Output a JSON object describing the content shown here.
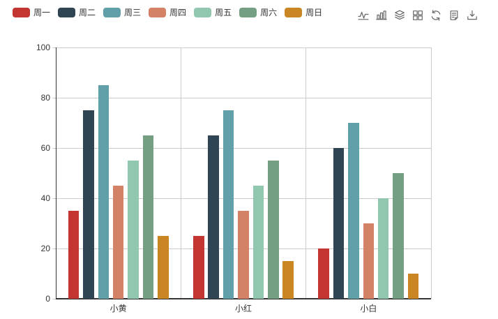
{
  "toolbox": {
    "icon_color": "#666666",
    "icons": [
      {
        "name": "line-chart-icon"
      },
      {
        "name": "bar-chart-icon"
      },
      {
        "name": "stack-icon"
      },
      {
        "name": "tiled-icon"
      },
      {
        "name": "restore-icon"
      },
      {
        "name": "data-view-icon"
      },
      {
        "name": "download-icon"
      }
    ]
  },
  "chart_data": {
    "type": "bar",
    "title": "",
    "xlabel": "",
    "ylabel": "",
    "categories": [
      "小黄",
      "小红",
      "小白"
    ],
    "series": [
      {
        "name": "周一",
        "color": "#c23531",
        "values": [
          35,
          25,
          20
        ]
      },
      {
        "name": "周二",
        "color": "#2f4554",
        "values": [
          75,
          65,
          60
        ]
      },
      {
        "name": "周三",
        "color": "#61a0a8",
        "values": [
          85,
          75,
          70
        ]
      },
      {
        "name": "周四",
        "color": "#d48265",
        "values": [
          45,
          35,
          30
        ]
      },
      {
        "name": "周五",
        "color": "#91c7ae",
        "values": [
          55,
          45,
          40
        ]
      },
      {
        "name": "周六",
        "color": "#749f83",
        "values": [
          65,
          55,
          50
        ]
      },
      {
        "name": "周日",
        "color": "#ca8622",
        "values": [
          25,
          15,
          10
        ]
      }
    ],
    "ylim": [
      0,
      100
    ],
    "y_ticks": [
      0,
      20,
      40,
      60,
      80,
      100
    ],
    "grid": true,
    "legend_position": "top-left",
    "legend_icon": "roundRect"
  },
  "colors": {
    "axis": "#333333",
    "grid_line": "#cccccc",
    "label": "#333333",
    "background": "#ffffff"
  }
}
